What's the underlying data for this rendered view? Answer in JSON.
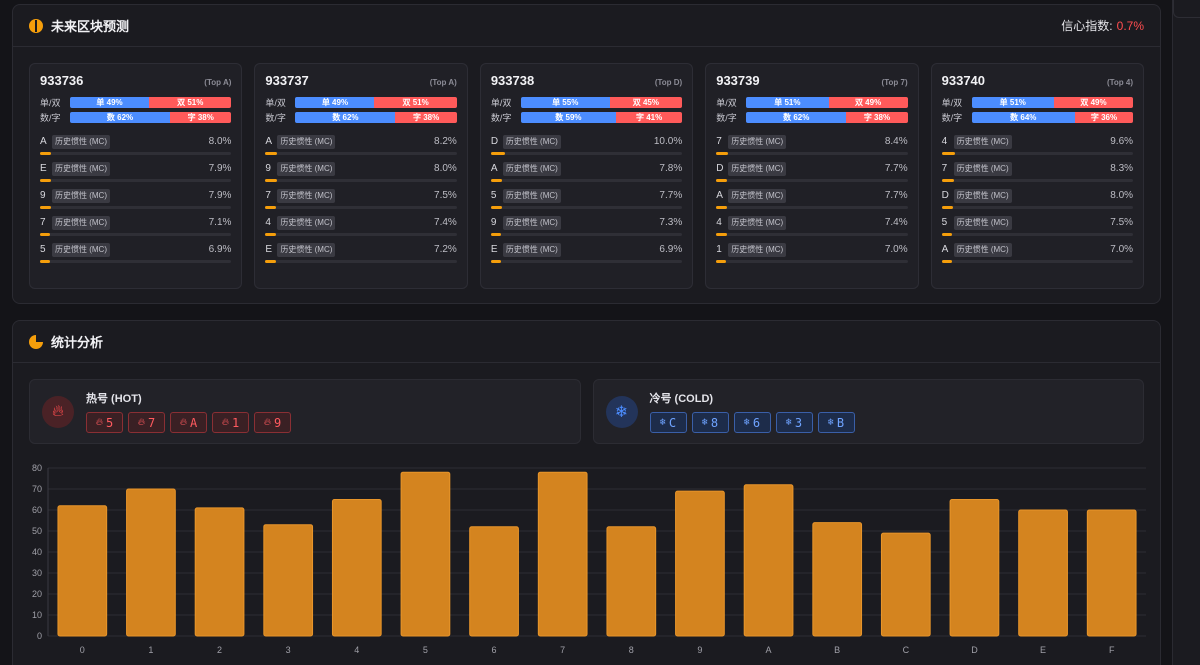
{
  "prediction": {
    "title": "未来区块预测",
    "confidence_label": "信心指数:",
    "confidence_value": "0.7%",
    "ratio_labels": {
      "odd_even": "单/双",
      "num_letter": "数/字"
    },
    "tag_text": "历史惯性 (MC)",
    "blocks": [
      {
        "id": "933736",
        "top": "(Top A)",
        "odd": 49,
        "odd_text": "单 49%",
        "even_text": "双 51%",
        "num": 62,
        "num_text": "数 62%",
        "letter_text": "字 38%",
        "preds": [
          {
            "sym": "A",
            "pct": "8.0%",
            "v": 8.0
          },
          {
            "sym": "E",
            "pct": "7.9%",
            "v": 7.9
          },
          {
            "sym": "9",
            "pct": "7.9%",
            "v": 7.9
          },
          {
            "sym": "7",
            "pct": "7.1%",
            "v": 7.1
          },
          {
            "sym": "5",
            "pct": "6.9%",
            "v": 6.9
          }
        ]
      },
      {
        "id": "933737",
        "top": "(Top A)",
        "odd": 49,
        "odd_text": "单 49%",
        "even_text": "双 51%",
        "num": 62,
        "num_text": "数 62%",
        "letter_text": "字 38%",
        "preds": [
          {
            "sym": "A",
            "pct": "8.2%",
            "v": 8.2
          },
          {
            "sym": "9",
            "pct": "8.0%",
            "v": 8.0
          },
          {
            "sym": "7",
            "pct": "7.5%",
            "v": 7.5
          },
          {
            "sym": "4",
            "pct": "7.4%",
            "v": 7.4
          },
          {
            "sym": "E",
            "pct": "7.2%",
            "v": 7.2
          }
        ]
      },
      {
        "id": "933738",
        "top": "(Top D)",
        "odd": 55,
        "odd_text": "单 55%",
        "even_text": "双 45%",
        "num": 59,
        "num_text": "数 59%",
        "letter_text": "字 41%",
        "preds": [
          {
            "sym": "D",
            "pct": "10.0%",
            "v": 10.0
          },
          {
            "sym": "A",
            "pct": "7.8%",
            "v": 7.8
          },
          {
            "sym": "5",
            "pct": "7.7%",
            "v": 7.7
          },
          {
            "sym": "9",
            "pct": "7.3%",
            "v": 7.3
          },
          {
            "sym": "E",
            "pct": "6.9%",
            "v": 6.9
          }
        ]
      },
      {
        "id": "933739",
        "top": "(Top 7)",
        "odd": 51,
        "odd_text": "单 51%",
        "even_text": "双 49%",
        "num": 62,
        "num_text": "数 62%",
        "letter_text": "字 38%",
        "preds": [
          {
            "sym": "7",
            "pct": "8.4%",
            "v": 8.4
          },
          {
            "sym": "D",
            "pct": "7.7%",
            "v": 7.7
          },
          {
            "sym": "A",
            "pct": "7.7%",
            "v": 7.7
          },
          {
            "sym": "4",
            "pct": "7.4%",
            "v": 7.4
          },
          {
            "sym": "1",
            "pct": "7.0%",
            "v": 7.0
          }
        ]
      },
      {
        "id": "933740",
        "top": "(Top 4)",
        "odd": 51,
        "odd_text": "单 51%",
        "even_text": "双 49%",
        "num": 64,
        "num_text": "数 64%",
        "letter_text": "字 36%",
        "preds": [
          {
            "sym": "4",
            "pct": "9.6%",
            "v": 9.6
          },
          {
            "sym": "7",
            "pct": "8.3%",
            "v": 8.3
          },
          {
            "sym": "D",
            "pct": "8.0%",
            "v": 8.0
          },
          {
            "sym": "5",
            "pct": "7.5%",
            "v": 7.5
          },
          {
            "sym": "A",
            "pct": "7.0%",
            "v": 7.0
          }
        ]
      }
    ]
  },
  "stats": {
    "title": "统计分析",
    "hot": {
      "title": "热号 (HOT)",
      "icon": "flame-icon",
      "numbers": [
        "5",
        "7",
        "A",
        "1",
        "9"
      ]
    },
    "cold": {
      "title": "冷号 (COLD)",
      "icon": "snowflake-icon",
      "numbers": [
        "C",
        "8",
        "6",
        "3",
        "B"
      ]
    }
  },
  "colors": {
    "accent": "#f59e0b",
    "bar": "#d4841f",
    "blue": "#4c8dff",
    "red": "#ff5a5a"
  },
  "chart_data": {
    "type": "bar",
    "categories": [
      "0",
      "1",
      "2",
      "3",
      "4",
      "5",
      "6",
      "7",
      "8",
      "9",
      "A",
      "B",
      "C",
      "D",
      "E",
      "F"
    ],
    "values": [
      62,
      70,
      61,
      53,
      65,
      78,
      52,
      78,
      52,
      69,
      72,
      54,
      49,
      65,
      60,
      60
    ],
    "ylim": [
      0,
      80
    ],
    "yticks": [
      0,
      10,
      20,
      30,
      40,
      50,
      60,
      70,
      80
    ],
    "grid": true,
    "title": "",
    "xlabel": "",
    "ylabel": ""
  }
}
